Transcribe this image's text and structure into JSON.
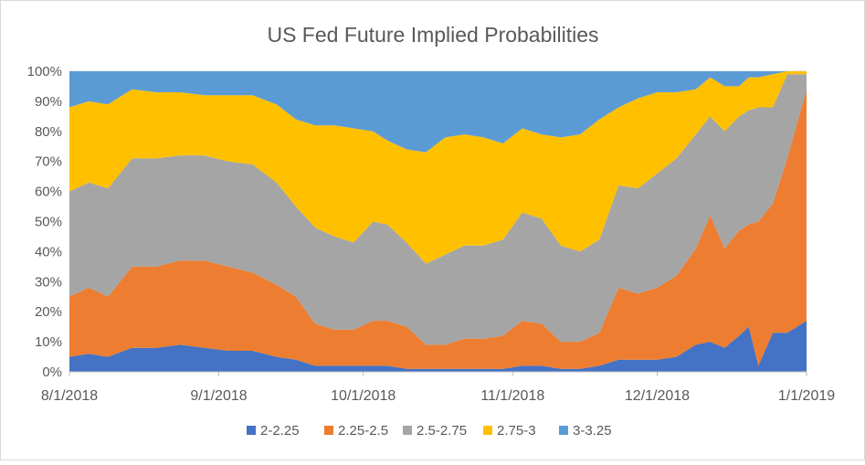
{
  "chart_data": {
    "type": "area",
    "stacked": true,
    "percent": true,
    "title": "US Fed Future Implied Probabilities",
    "xlabel": "",
    "ylabel": "",
    "ylim": [
      0,
      100
    ],
    "y_ticks": [
      "0%",
      "10%",
      "20%",
      "30%",
      "40%",
      "50%",
      "60%",
      "70%",
      "80%",
      "90%",
      "100%"
    ],
    "x_ticks": [
      {
        "label": "8/1/2018",
        "date": "2018-08-01"
      },
      {
        "label": "9/1/2018",
        "date": "2018-09-01"
      },
      {
        "label": "10/1/2018",
        "date": "2018-10-01"
      },
      {
        "label": "11/1/2018",
        "date": "2018-11-01"
      },
      {
        "label": "12/1/2018",
        "date": "2018-12-01"
      },
      {
        "label": "1/1/2019",
        "date": "2019-01-01"
      }
    ],
    "x": [
      "2018-08-01",
      "2018-08-05",
      "2018-08-09",
      "2018-08-14",
      "2018-08-19",
      "2018-08-24",
      "2018-08-29",
      "2018-09-03",
      "2018-09-08",
      "2018-09-13",
      "2018-09-17",
      "2018-09-21",
      "2018-09-25",
      "2018-09-29",
      "2018-10-03",
      "2018-10-06",
      "2018-10-10",
      "2018-10-14",
      "2018-10-18",
      "2018-10-22",
      "2018-10-26",
      "2018-10-30",
      "2018-11-03",
      "2018-11-07",
      "2018-11-11",
      "2018-11-15",
      "2018-11-19",
      "2018-11-23",
      "2018-11-27",
      "2018-12-01",
      "2018-12-05",
      "2018-12-09",
      "2018-12-12",
      "2018-12-15",
      "2018-12-18",
      "2018-12-20",
      "2018-12-22",
      "2018-12-25",
      "2018-12-28",
      "2019-01-01"
    ],
    "series": [
      {
        "name": "2-2.25",
        "color": "#4472C4",
        "values": [
          5,
          6,
          5,
          8,
          8,
          9,
          8,
          7,
          7,
          5,
          4,
          2,
          2,
          2,
          2,
          2,
          1,
          1,
          1,
          1,
          1,
          1,
          2,
          2,
          1,
          1,
          2,
          4,
          4,
          4,
          5,
          9,
          10,
          8,
          12,
          15,
          2,
          13,
          13,
          17
        ]
      },
      {
        "name": "2.25-2.5",
        "color": "#ED7D31",
        "values": [
          20,
          22,
          20,
          27,
          27,
          28,
          29,
          28,
          26,
          24,
          21,
          14,
          12,
          12,
          15,
          15,
          14,
          8,
          8,
          10,
          10,
          11,
          15,
          14,
          9,
          9,
          11,
          24,
          22,
          24,
          27,
          32,
          42,
          33,
          35,
          34,
          48,
          43,
          58,
          77
        ]
      },
      {
        "name": "2.5-2.75",
        "color": "#A5A5A5",
        "values": [
          35,
          35,
          36,
          36,
          36,
          35,
          35,
          35,
          36,
          34,
          30,
          32,
          31,
          29,
          33,
          32,
          28,
          27,
          30,
          31,
          31,
          32,
          36,
          35,
          32,
          30,
          31,
          34,
          35,
          38,
          39,
          38,
          33,
          39,
          38,
          38,
          38,
          32,
          28,
          5
        ]
      },
      {
        "name": "2.75-3",
        "color": "#FFC000",
        "values": [
          28,
          27,
          28,
          23,
          22,
          21,
          20,
          22,
          23,
          26,
          29,
          34,
          37,
          38,
          30,
          28,
          31,
          37,
          39,
          37,
          36,
          32,
          28,
          28,
          36,
          39,
          40,
          26,
          30,
          27,
          22,
          15,
          13,
          15,
          10,
          11,
          10,
          11,
          1,
          1
        ]
      },
      {
        "name": "3-3.25",
        "color": "#5B9BD5",
        "values": [
          12,
          10,
          11,
          6,
          7,
          7,
          8,
          8,
          8,
          11,
          16,
          18,
          18,
          19,
          20,
          23,
          26,
          27,
          22,
          21,
          22,
          24,
          19,
          21,
          22,
          21,
          16,
          12,
          9,
          7,
          7,
          6,
          2,
          5,
          5,
          2,
          2,
          1,
          0,
          0
        ]
      }
    ],
    "legend_position": "bottom",
    "grid": true
  }
}
